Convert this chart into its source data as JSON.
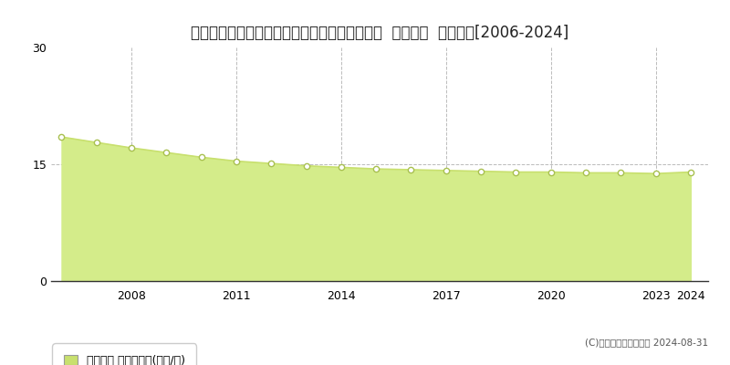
{
  "title": "福井県越前市文京２丁目５０字胴木１４番６外  地価公示  地価推移[2006-2024]",
  "years": [
    2006,
    2007,
    2008,
    2009,
    2010,
    2011,
    2012,
    2013,
    2014,
    2015,
    2016,
    2017,
    2018,
    2019,
    2020,
    2021,
    2022,
    2023,
    2024
  ],
  "values": [
    18.5,
    17.8,
    17.1,
    16.5,
    15.9,
    15.4,
    15.1,
    14.8,
    14.6,
    14.4,
    14.3,
    14.2,
    14.1,
    14.0,
    14.0,
    13.9,
    13.9,
    13.8,
    14.0
  ],
  "ylim": [
    0,
    30
  ],
  "yticks": [
    0,
    15,
    30
  ],
  "xtick_years": [
    2008,
    2011,
    2014,
    2017,
    2020,
    2023,
    2024
  ],
  "grid_years": [
    2008,
    2011,
    2014,
    2017,
    2020,
    2023
  ],
  "line_color": "#c8e06e",
  "fill_color": "#d4ec8a",
  "marker_face_color": "#ffffff",
  "marker_edge_color": "#a8c050",
  "grid_color": "#bbbbbb",
  "background_color": "#ffffff",
  "legend_label": "地価公示 平均坪単価(万円/坪)",
  "legend_box_color": "#c8e06e",
  "copyright_text": "(C)土地価格ドットコム 2024-08-31",
  "title_fontsize": 12,
  "axis_fontsize": 9,
  "legend_fontsize": 9
}
